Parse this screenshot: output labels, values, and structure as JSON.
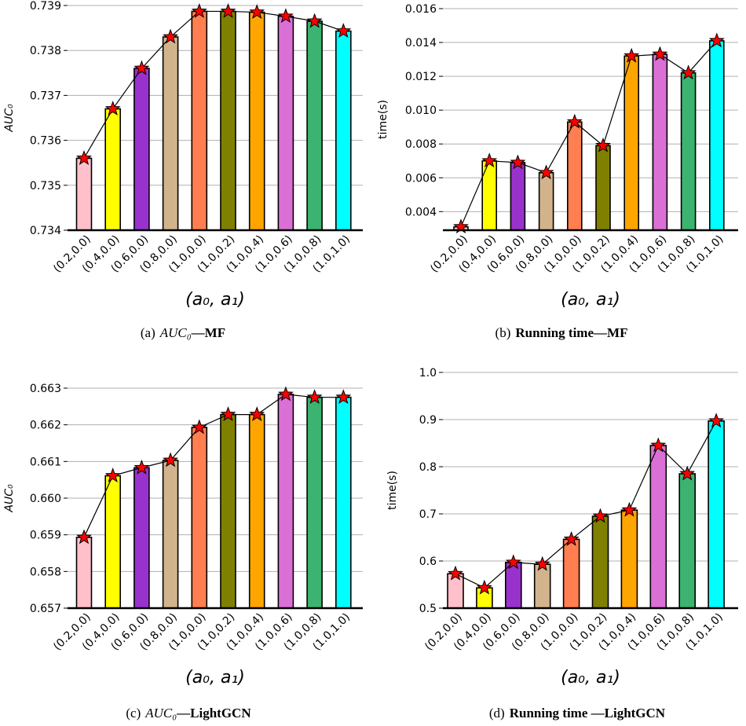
{
  "chart_data": [
    {
      "type": "bar",
      "xlabel": "(a₀, a₁)",
      "ylabel": "AUC₀",
      "ylim": [
        0.734,
        0.739
      ],
      "yticks": [
        "0.734",
        "0.735",
        "0.736",
        "0.737",
        "0.738",
        "0.739"
      ],
      "grid": true,
      "categories": [
        "(0.2,0.0)",
        "(0.4,0.0)",
        "(0.6,0.0)",
        "(0.8,0.0)",
        "(1.0,0.0)",
        "(1.0,0.2)",
        "(1.0,0.4)",
        "(1.0,0.6)",
        "(1.0,0.8)",
        "(1.0,1.0)"
      ],
      "values": [
        0.7356,
        0.7367,
        0.7376,
        0.7383,
        0.73887,
        0.73887,
        0.73885,
        0.73876,
        0.73865,
        0.73843
      ],
      "caption_label": "(a)",
      "caption_metric": "AUC₀",
      "caption_model": "—MF"
    },
    {
      "type": "bar",
      "xlabel": "(a₀, a₁)",
      "ylabel": "time(s)",
      "ylim": [
        0.0029,
        0.016
      ],
      "yticks": [
        "0.004",
        "0.006",
        "0.008",
        "0.010",
        "0.012",
        "0.014",
        "0.016"
      ],
      "grid": true,
      "categories": [
        "(0.2,0.0)",
        "(0.4,0.0)",
        "(0.6,0.0)",
        "(0.8,0.0)",
        "(1.0,0.0)",
        "(1.0,0.2)",
        "(1.0,0.4)",
        "(1.0,0.6)",
        "(1.0,0.8)",
        "(1.0,1.0)"
      ],
      "values": [
        0.0031,
        0.007,
        0.0069,
        0.0063,
        0.0093,
        0.0079,
        0.0132,
        0.0133,
        0.0122,
        0.0141
      ],
      "caption_label": "(b)",
      "caption_title": "Running time—MF"
    },
    {
      "type": "bar",
      "xlabel": "(a₀, a₁)",
      "ylabel": "AUC₀",
      "ylim": [
        0.657,
        0.663
      ],
      "yticks": [
        "0.657",
        "0.658",
        "0.659",
        "0.660",
        "0.661",
        "0.662",
        "0.663"
      ],
      "grid": true,
      "categories": [
        "(0.2,0.0)",
        "(0.4,0.0)",
        "(0.6,0.0)",
        "(0.8,0.0)",
        "(1.0,0.0)",
        "(1.0,0.2)",
        "(1.0,0.4)",
        "(1.0,0.6)",
        "(1.0,0.8)",
        "(1.0,1.0)"
      ],
      "values": [
        0.65893,
        0.66061,
        0.66083,
        0.66103,
        0.66193,
        0.66228,
        0.66228,
        0.66283,
        0.66275,
        0.66275
      ],
      "caption_label": "(c)",
      "caption_metric": "AUC₀",
      "caption_model": "—LightGCN"
    },
    {
      "type": "bar",
      "xlabel": "(a₀, a₁)",
      "ylabel": "time(s)",
      "ylim": [
        0.5,
        1.0
      ],
      "yticks": [
        "0.5",
        "0.6",
        "0.7",
        "0.8",
        "0.9",
        "1.0"
      ],
      "grid": true,
      "categories": [
        "(0.2,0.0)",
        "(0.4,0.0)",
        "(0.6,0.0)",
        "(0.8,0.0)",
        "(1.0,0.0)",
        "(1.0,0.2)",
        "(1.0,0.4)",
        "(1.0,0.6)",
        "(1.0,0.8)",
        "(1.0,1.0)"
      ],
      "values": [
        0.573,
        0.543,
        0.597,
        0.593,
        0.646,
        0.695,
        0.708,
        0.845,
        0.785,
        0.897
      ],
      "caption_label": "(d)",
      "caption_title": "Running time —LightGCN"
    }
  ],
  "colors": {
    "bars": [
      "#ffc0cb",
      "#ffff00",
      "#9932cc",
      "#d2b48c",
      "#ff7f50",
      "#808000",
      "#ffa500",
      "#da70d6",
      "#3cb371",
      "#00ffff"
    ],
    "marker_fill": "#ff0000",
    "marker_stroke": "#000000",
    "line": "#000000",
    "grid": "#b0b0b0"
  }
}
